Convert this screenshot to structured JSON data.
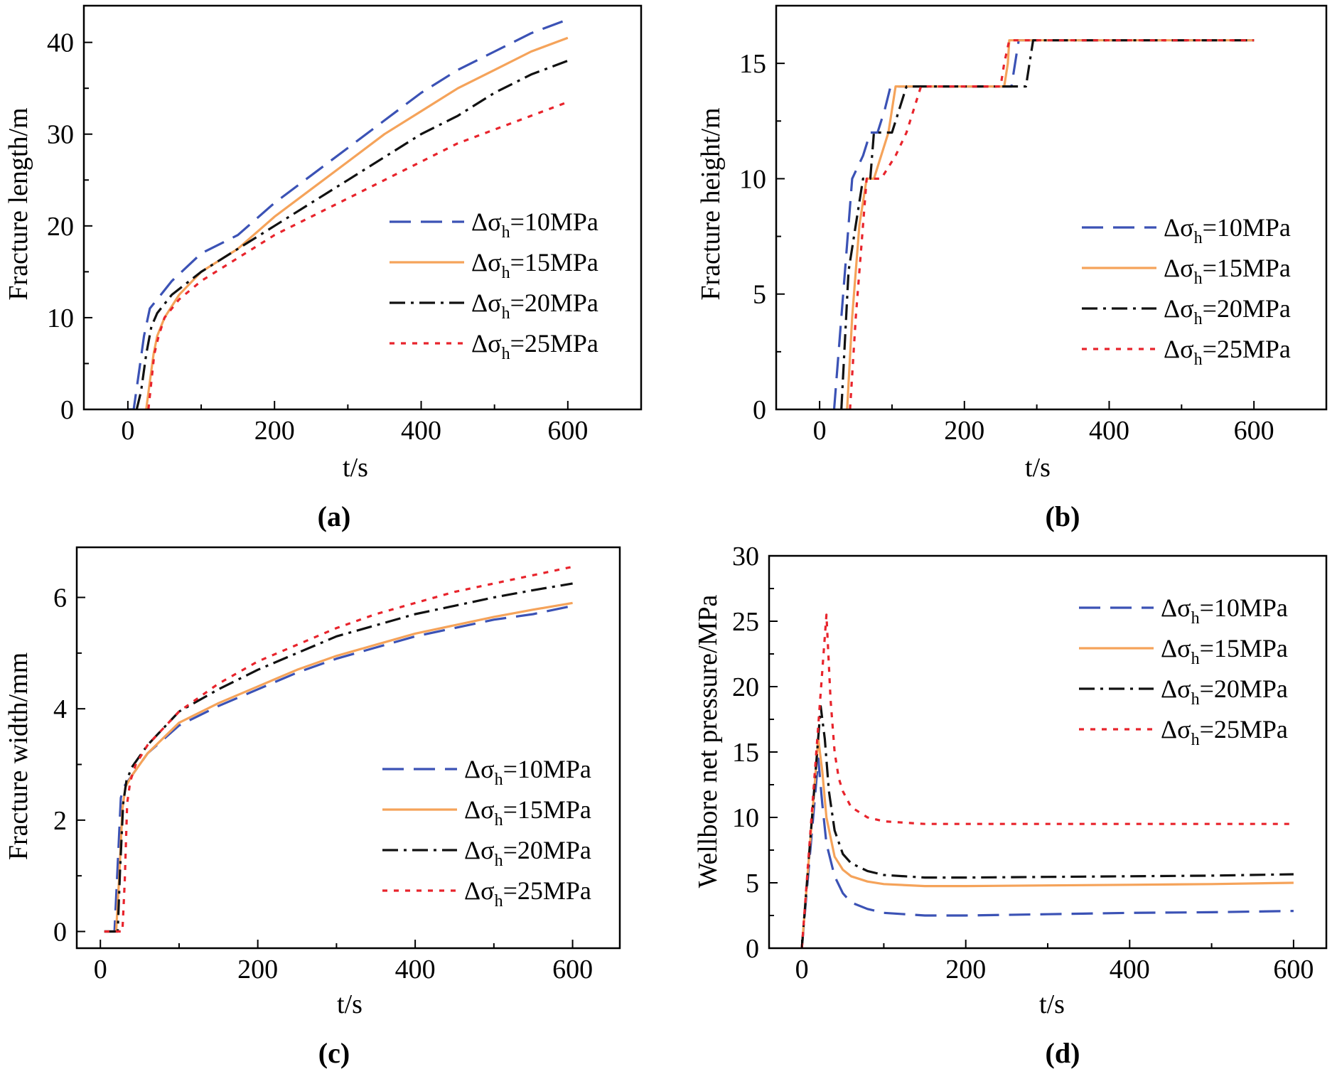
{
  "figure": {
    "legend_prefix": "Δσ",
    "legend_subscript": "h",
    "series_styles": [
      {
        "name": "Δσh=10MPa",
        "label_value": "=10MPa",
        "color": "#3b52b5",
        "dash": "long-dash"
      },
      {
        "name": "Δσh=15MPa",
        "label_value": "=15MPa",
        "color": "#f5a35a",
        "dash": "solid"
      },
      {
        "name": "Δσh=20MPa",
        "label_value": "=20MPa",
        "color": "#111111",
        "dash": "dash-dot"
      },
      {
        "name": "Δσh=25MPa",
        "label_value": "=25MPa",
        "color": "#e8242c",
        "dash": "dotted"
      }
    ]
  },
  "chart_data": [
    {
      "panel_label": "(a)",
      "type": "line",
      "xlabel": "t/s",
      "ylabel": "Fracture length/m",
      "xlim": [
        -60,
        700
      ],
      "ylim": [
        0,
        44
      ],
      "xticks": [
        0,
        200,
        400,
        600
      ],
      "yticks": [
        0,
        10,
        20,
        30,
        40
      ],
      "xtick_labels": [
        "0",
        "200",
        "400",
        "600"
      ],
      "ytick_labels": [
        "0",
        "10",
        "20",
        "30",
        "40"
      ],
      "legend_position": "right-middle",
      "series": [
        {
          "name": "Δσh=10MPa",
          "x": [
            0,
            8,
            15,
            22,
            30,
            40,
            60,
            100,
            150,
            200,
            250,
            300,
            350,
            400,
            450,
            500,
            550,
            600
          ],
          "y": [
            0,
            0,
            4,
            8,
            11,
            12,
            14,
            17,
            19,
            22.5,
            25.5,
            28.5,
            31.5,
            34.5,
            37,
            39,
            41,
            42.5
          ]
        },
        {
          "name": "Δσh=15MPa",
          "x": [
            25,
            30,
            35,
            40,
            50,
            70,
            100,
            150,
            200,
            250,
            300,
            350,
            400,
            450,
            500,
            550,
            600
          ],
          "y": [
            0,
            3,
            6,
            8,
            10,
            12.5,
            15,
            17.5,
            21,
            24,
            27,
            30,
            32.5,
            35,
            37,
            39,
            40.5
          ]
        },
        {
          "name": "Δσh=20MPa",
          "x": [
            12,
            18,
            25,
            32,
            40,
            60,
            100,
            150,
            200,
            250,
            300,
            350,
            400,
            450,
            500,
            550,
            600
          ],
          "y": [
            0,
            2,
            6,
            9,
            10.5,
            12.5,
            15,
            17.5,
            20,
            22.5,
            25,
            27.5,
            30,
            32,
            34.5,
            36.5,
            38
          ]
        },
        {
          "name": "Δσh=25MPa",
          "x": [
            28,
            32,
            36,
            42,
            50,
            70,
            100,
            150,
            200,
            250,
            300,
            350,
            400,
            450,
            500,
            550,
            600
          ],
          "y": [
            0,
            3,
            6,
            8,
            10,
            12,
            14,
            16.5,
            19,
            21,
            23,
            25,
            27,
            29,
            30.5,
            32,
            33.5
          ]
        }
      ]
    },
    {
      "panel_label": "(b)",
      "type": "line",
      "xlabel": "t/s",
      "ylabel": "Fracture height/m",
      "xlim": [
        -60,
        700
      ],
      "ylim": [
        0,
        17.5
      ],
      "xticks": [
        0,
        200,
        400,
        600
      ],
      "yticks": [
        0,
        5,
        10,
        15
      ],
      "xtick_labels": [
        "0",
        "200",
        "400",
        "600"
      ],
      "ytick_labels": [
        "0",
        "5",
        "10",
        "15"
      ],
      "legend_position": "right-middle",
      "series": [
        {
          "name": "Δσh=10MPa",
          "x": [
            20,
            35,
            45,
            60,
            70,
            80,
            90,
            98,
            100,
            260,
            265,
            270,
            275,
            600
          ],
          "y": [
            0,
            6,
            10,
            11,
            12,
            12,
            13,
            14,
            14,
            14,
            14,
            15,
            16,
            16
          ]
        },
        {
          "name": "Δσh=15MPa",
          "x": [
            38,
            45,
            55,
            65,
            75,
            95,
            105,
            110,
            255,
            260,
            262,
            600
          ],
          "y": [
            0,
            4,
            8,
            10,
            10,
            12,
            14,
            14,
            14,
            15,
            16,
            16
          ]
        },
        {
          "name": "Δσh=20MPa",
          "x": [
            30,
            40,
            50,
            60,
            70,
            75,
            100,
            110,
            120,
            270,
            285,
            290,
            295,
            600
          ],
          "y": [
            0,
            6,
            8,
            10,
            10,
            12,
            12,
            13,
            14,
            14,
            14,
            15,
            16,
            16
          ]
        },
        {
          "name": "Δσh=25MPa",
          "x": [
            42,
            50,
            60,
            65,
            75,
            85,
            105,
            120,
            130,
            140,
            250,
            255,
            262,
            600
          ],
          "y": [
            0,
            4,
            8,
            10,
            10,
            10,
            11,
            12,
            13,
            14,
            14,
            15,
            16,
            16
          ]
        }
      ]
    },
    {
      "panel_label": "(c)",
      "type": "line",
      "xlabel": "t/s",
      "ylabel": "Fracture width/mm",
      "xlim": [
        -30,
        660
      ],
      "ylim": [
        -0.3,
        6.9
      ],
      "xticks": [
        0,
        200,
        400,
        600
      ],
      "yticks": [
        0,
        2,
        4,
        6
      ],
      "xtick_labels": [
        "0",
        "200",
        "400",
        "600"
      ],
      "ytick_labels": [
        "0",
        "2",
        "4",
        "6"
      ],
      "legend_position": "bottom-right",
      "series": [
        {
          "name": "Δσh=10MPa",
          "x": [
            5,
            18,
            22,
            26,
            30,
            40,
            60,
            100,
            150,
            200,
            250,
            300,
            350,
            400,
            450,
            500,
            550,
            600
          ],
          "y": [
            0,
            0,
            1.2,
            2.4,
            2.6,
            2.8,
            3.2,
            3.7,
            4.05,
            4.35,
            4.65,
            4.9,
            5.1,
            5.3,
            5.45,
            5.6,
            5.7,
            5.85
          ]
        },
        {
          "name": "Δσh=15MPa",
          "x": [
            5,
            20,
            24,
            28,
            32,
            40,
            60,
            100,
            150,
            200,
            250,
            300,
            350,
            400,
            450,
            500,
            550,
            600
          ],
          "y": [
            0,
            0,
            1.0,
            2.2,
            2.6,
            2.8,
            3.2,
            3.75,
            4.1,
            4.4,
            4.7,
            4.95,
            5.15,
            5.35,
            5.5,
            5.65,
            5.78,
            5.9
          ]
        },
        {
          "name": "Δσh=20MPa",
          "x": [
            5,
            22,
            25,
            29,
            33,
            40,
            60,
            100,
            150,
            200,
            250,
            300,
            350,
            400,
            450,
            500,
            550,
            600
          ],
          "y": [
            0,
            0,
            1.1,
            2.3,
            2.7,
            2.95,
            3.35,
            3.95,
            4.35,
            4.7,
            5.0,
            5.3,
            5.5,
            5.7,
            5.85,
            6.0,
            6.13,
            6.25
          ]
        },
        {
          "name": "Δσh=25MPa",
          "x": [
            5,
            28,
            31,
            34,
            38,
            45,
            60,
            100,
            150,
            200,
            250,
            300,
            350,
            400,
            450,
            500,
            550,
            600
          ],
          "y": [
            0,
            0,
            0.9,
            2.3,
            2.7,
            3.0,
            3.35,
            3.95,
            4.45,
            4.85,
            5.15,
            5.45,
            5.7,
            5.9,
            6.1,
            6.25,
            6.4,
            6.55
          ]
        }
      ]
    },
    {
      "panel_label": "(d)",
      "type": "line",
      "xlabel": "t/s",
      "ylabel": "Wellbore net pressure/MPa",
      "xlim": [
        -40,
        640
      ],
      "ylim": [
        0,
        30
      ],
      "xticks": [
        0,
        200,
        400,
        600
      ],
      "yticks": [
        0,
        5,
        10,
        15,
        20,
        25,
        30
      ],
      "xtick_labels": [
        "0",
        "200",
        "400",
        "600"
      ],
      "ytick_labels": [
        "0",
        "5",
        "10",
        "15",
        "20",
        "25",
        "30"
      ],
      "legend_position": "top-right",
      "series": [
        {
          "name": "Δσh=10MPa",
          "x": [
            0,
            20,
            25,
            30,
            40,
            50,
            60,
            80,
            100,
            150,
            200,
            300,
            400,
            500,
            600
          ],
          "y": [
            0,
            14.5,
            11,
            8,
            5.5,
            4.2,
            3.5,
            3.0,
            2.7,
            2.5,
            2.5,
            2.6,
            2.7,
            2.75,
            2.85
          ]
        },
        {
          "name": "Δσh=15MPa",
          "x": [
            0,
            20,
            25,
            30,
            40,
            50,
            60,
            80,
            100,
            150,
            200,
            300,
            400,
            500,
            600
          ],
          "y": [
            0,
            16,
            13.5,
            10,
            7.0,
            6.0,
            5.5,
            5.1,
            4.9,
            4.75,
            4.75,
            4.8,
            4.85,
            4.9,
            5.0
          ]
        },
        {
          "name": "Δσh=20MPa",
          "x": [
            0,
            23,
            28,
            33,
            40,
            50,
            60,
            80,
            100,
            150,
            200,
            300,
            400,
            500,
            600
          ],
          "y": [
            0,
            18.5,
            16,
            12,
            9.0,
            7.2,
            6.5,
            5.9,
            5.6,
            5.4,
            5.4,
            5.45,
            5.5,
            5.55,
            5.65
          ]
        },
        {
          "name": "Δσh=25MPa",
          "x": [
            0,
            30,
            35,
            40,
            45,
            50,
            60,
            80,
            100,
            150,
            200,
            300,
            400,
            500,
            600
          ],
          "y": [
            0,
            25.5,
            19,
            15,
            13,
            12,
            10.8,
            10.0,
            9.7,
            9.5,
            9.5,
            9.5,
            9.5,
            9.5,
            9.5
          ]
        }
      ]
    }
  ]
}
